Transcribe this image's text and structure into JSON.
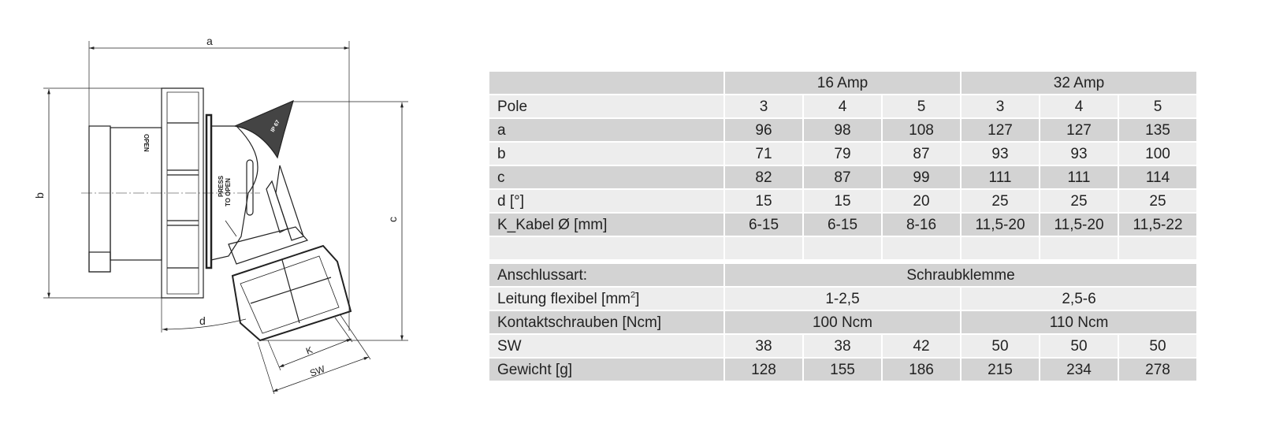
{
  "drawing": {
    "dimension_labels": {
      "a": "a",
      "b": "b",
      "c": "c",
      "d": "d",
      "k": "K",
      "sw": "SW"
    },
    "markings": {
      "press": "PRESS",
      "to_open": "TO OPEN",
      "open": "OPEN",
      "ip": "IP 67"
    }
  },
  "table": {
    "header": {
      "amp16": "16 Amp",
      "amp32": "32 Amp"
    },
    "rows": [
      {
        "label": "Pole",
        "values": [
          "3",
          "4",
          "5",
          "3",
          "4",
          "5"
        ]
      },
      {
        "label": "a",
        "values": [
          "96",
          "98",
          "108",
          "127",
          "127",
          "135"
        ]
      },
      {
        "label": "b",
        "values": [
          "71",
          "79",
          "87",
          "93",
          "93",
          "100"
        ]
      },
      {
        "label": "c",
        "values": [
          "82",
          "87",
          "99",
          "111",
          "111",
          "114"
        ]
      },
      {
        "label": "d [°]",
        "values": [
          "15",
          "15",
          "20",
          "25",
          "25",
          "25"
        ]
      },
      {
        "label": "K_Kabel Ø [mm]",
        "values": [
          "6-15",
          "6-15",
          "8-16",
          "11,5-20",
          "11,5-20",
          "11,5-22"
        ]
      }
    ],
    "anschlussart": {
      "label": "Anschlussart:",
      "value": "Schraubklemme"
    },
    "leitung": {
      "label": "Leitung flexibel [mm",
      "label_sup": "2",
      "label_end": "]",
      "amp16": "1-2,5",
      "amp32": "2,5-6"
    },
    "kontakt": {
      "label": "Kontaktschrauben [Ncm]",
      "amp16": "100 Ncm",
      "amp32": "110 Ncm"
    },
    "sw": {
      "label": "SW",
      "values": [
        "38",
        "38",
        "42",
        "50",
        "50",
        "50"
      ]
    },
    "gewicht": {
      "label": "Gewicht [g]",
      "values": [
        "128",
        "155",
        "186",
        "215",
        "234",
        "278"
      ]
    }
  }
}
